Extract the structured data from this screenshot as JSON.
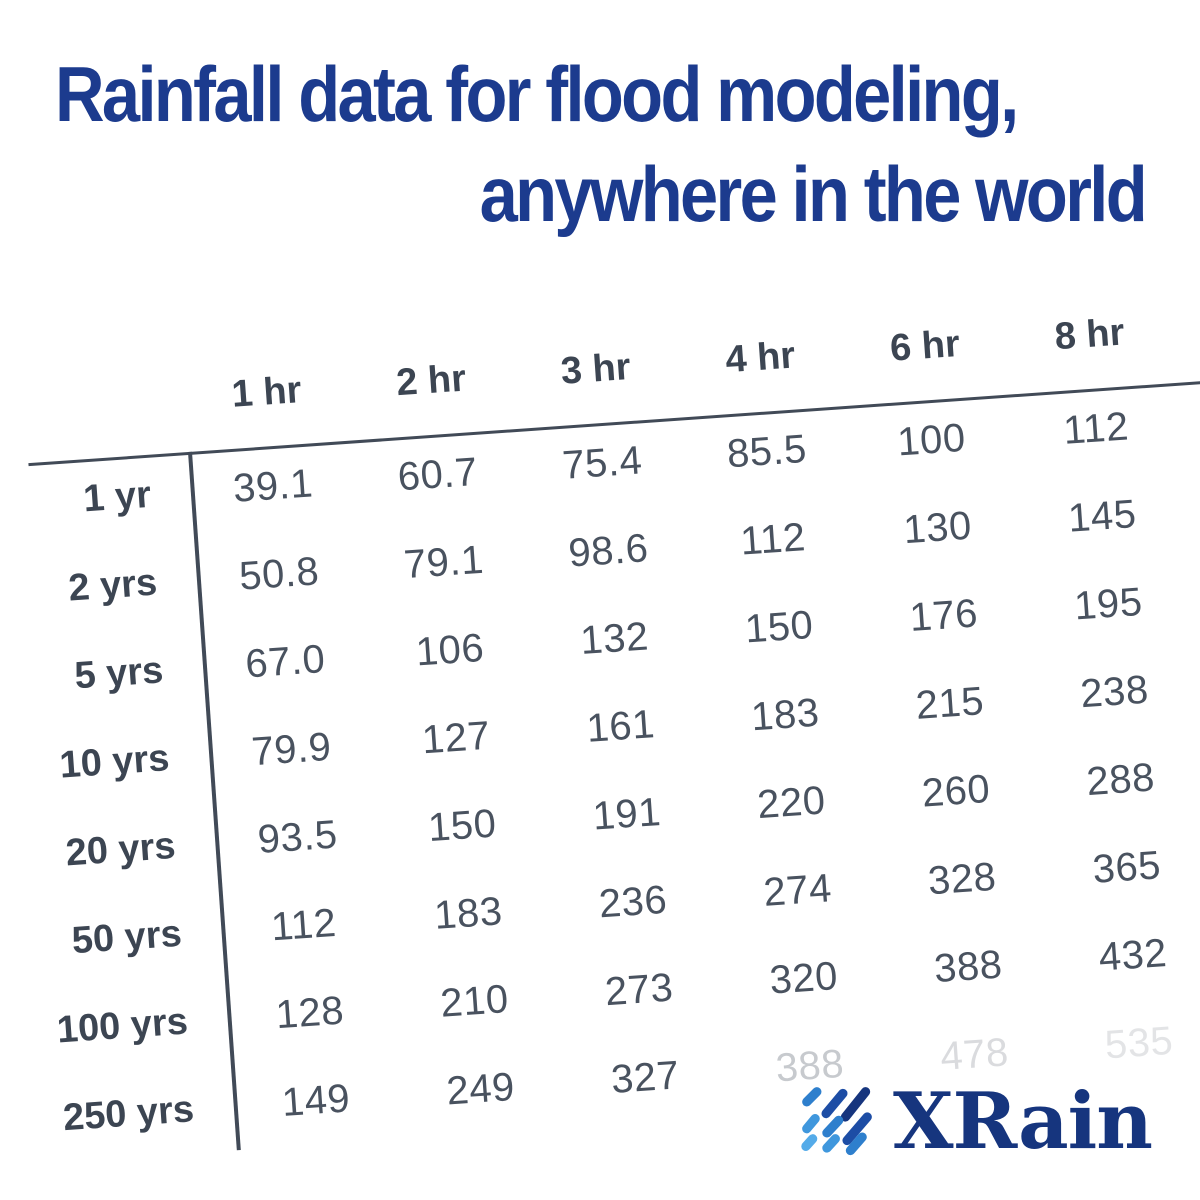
{
  "title": {
    "line1": "Rainfall data for flood modeling,",
    "line2": "anywhere in the world"
  },
  "table": {
    "col_headers": [
      "1 hr",
      "2 hr",
      "3 hr",
      "4 hr",
      "6 hr",
      "8 hr"
    ],
    "rows": [
      {
        "label": "1 yr",
        "values": [
          "39.1",
          "60.7",
          "75.4",
          "85.5",
          "100",
          "112"
        ]
      },
      {
        "label": "2 yrs",
        "values": [
          "50.8",
          "79.1",
          "98.6",
          "112",
          "130",
          "145"
        ]
      },
      {
        "label": "5 yrs",
        "values": [
          "67.0",
          "106",
          "132",
          "150",
          "176",
          "195"
        ]
      },
      {
        "label": "10 yrs",
        "values": [
          "79.9",
          "127",
          "161",
          "183",
          "215",
          "238"
        ]
      },
      {
        "label": "20 yrs",
        "values": [
          "93.5",
          "150",
          "191",
          "220",
          "260",
          "288"
        ]
      },
      {
        "label": "50 yrs",
        "values": [
          "112",
          "183",
          "236",
          "274",
          "328",
          "365"
        ]
      },
      {
        "label": "100 yrs",
        "values": [
          "128",
          "210",
          "273",
          "320",
          "388",
          "432"
        ]
      },
      {
        "label": "250 yrs",
        "values": [
          "149",
          "249",
          "327",
          "388",
          "478",
          "535"
        ]
      }
    ],
    "faded_cells": [
      {
        "row": 7,
        "col": 3,
        "opacity": 0.3
      },
      {
        "row": 7,
        "col": 4,
        "opacity": 0.2
      },
      {
        "row": 7,
        "col": 5,
        "opacity": 0.15
      }
    ]
  },
  "logo": {
    "text": "XRain",
    "icon": "rain-streaks-icon"
  },
  "colors": {
    "title": "#1c3b8e",
    "heading_text": "#3c4552",
    "value_text": "#49525f",
    "rule_lines": "#414a57",
    "logo_text": "#16357e",
    "icon_blues": [
      "#54abe9",
      "#3f97dd",
      "#2e7fcd",
      "#1d4da5",
      "#16357e"
    ]
  },
  "chart_data": {
    "type": "table",
    "title": "Rainfall data for flood modeling, anywhere in the world",
    "columns": [
      "1 hr",
      "2 hr",
      "3 hr",
      "4 hr",
      "6 hr",
      "8 hr"
    ],
    "row_labels": [
      "1 yr",
      "2 yrs",
      "5 yrs",
      "10 yrs",
      "20 yrs",
      "50 yrs",
      "100 yrs",
      "250 yrs"
    ],
    "values": [
      [
        39.1,
        60.7,
        75.4,
        85.5,
        100,
        112
      ],
      [
        50.8,
        79.1,
        98.6,
        112,
        130,
        145
      ],
      [
        67.0,
        106,
        132,
        150,
        176,
        195
      ],
      [
        79.9,
        127,
        161,
        183,
        215,
        238
      ],
      [
        93.5,
        150,
        191,
        220,
        260,
        288
      ],
      [
        112,
        183,
        236,
        274,
        328,
        365
      ],
      [
        128,
        210,
        273,
        320,
        388,
        432
      ],
      [
        149,
        249,
        327,
        388,
        478,
        535
      ]
    ],
    "notes": "Rows = return period (years); columns = storm duration (hours); table rendered rotated -4deg; last row columns 4-6 fade out toward bottom-right"
  }
}
